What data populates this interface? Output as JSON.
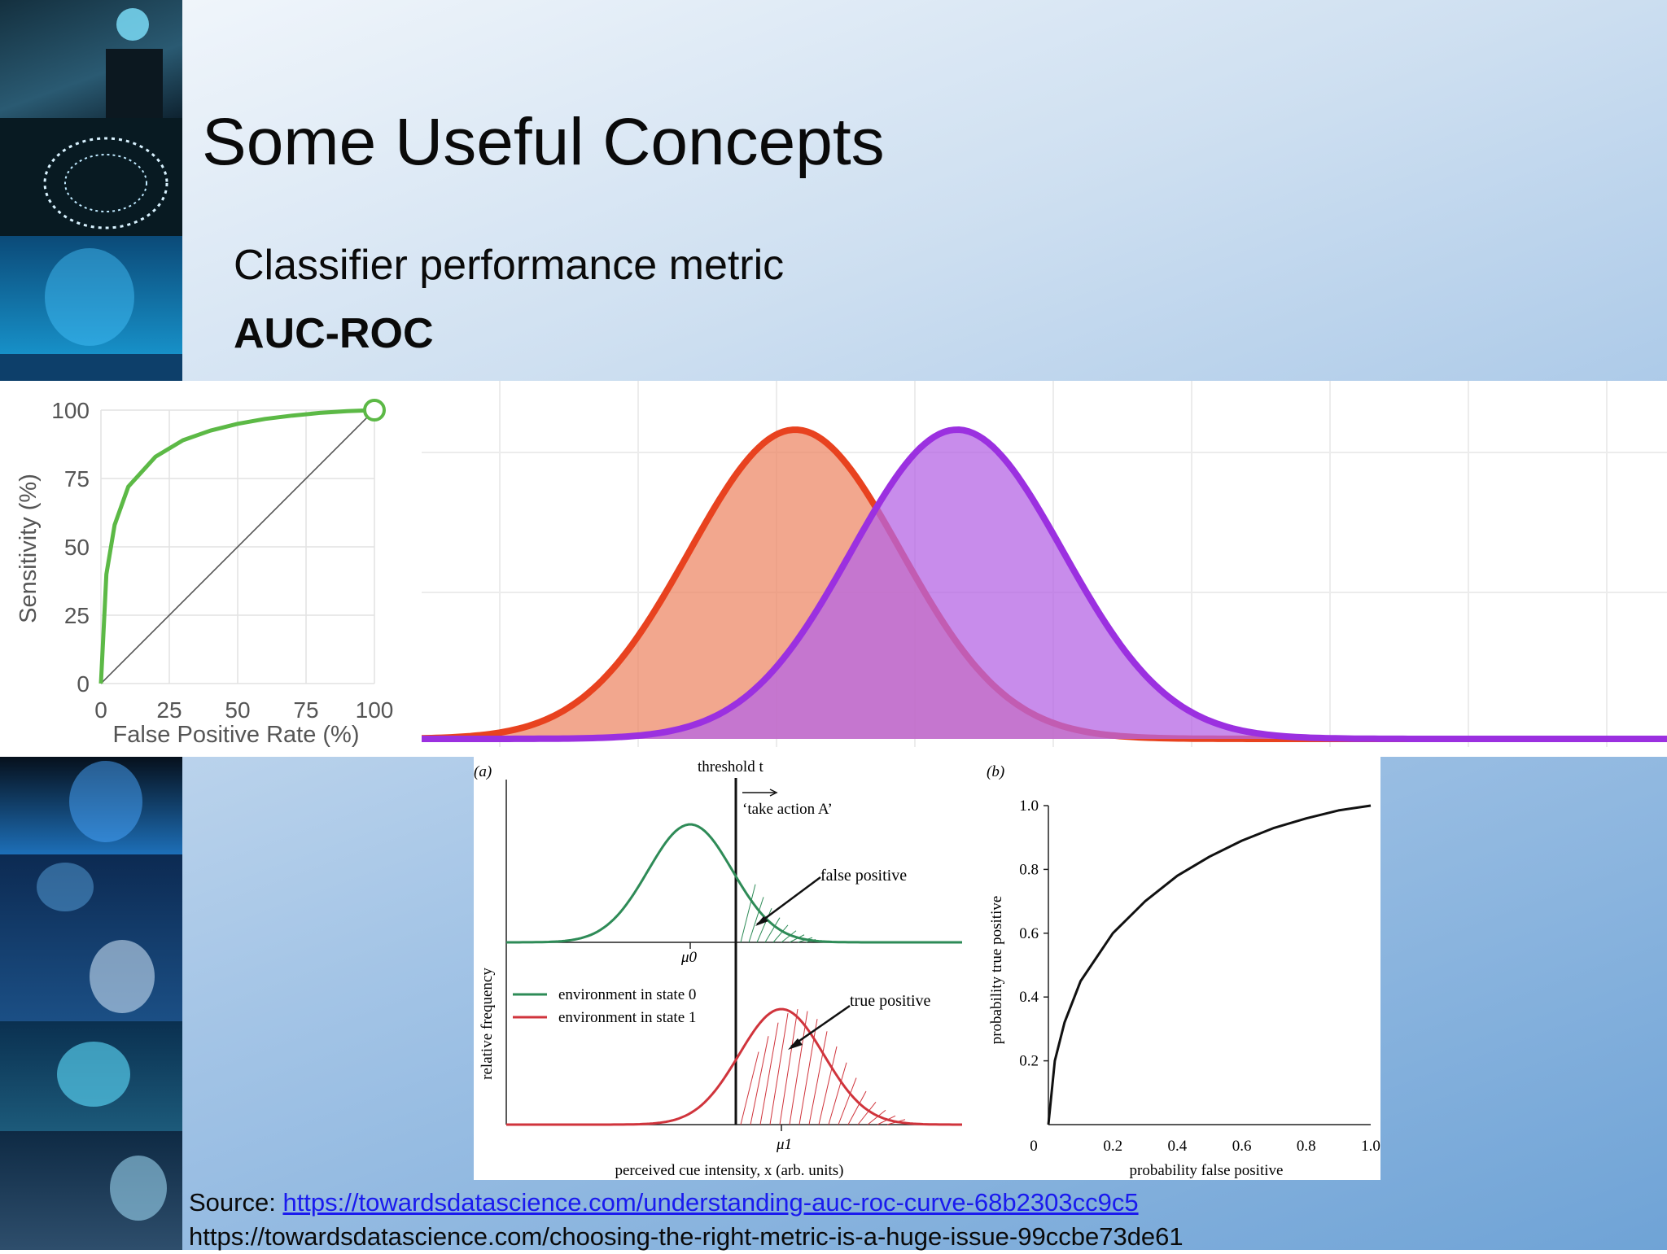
{
  "slide": {
    "title": "Some Useful Concepts",
    "subtitle": "Classifier performance metric",
    "heading": "AUC-ROC"
  },
  "side_strip": {
    "images": [
      "head-with-glowing-brain-icon",
      "circuit-brain-icon",
      "digital-face-icon",
      "neural-pattern-icon",
      "digital-head-icon",
      "binary-head-icon",
      "brain-circuit-icon",
      "robot-head-icon"
    ]
  },
  "roc_chart": {
    "ylabel": "Sensitivity (%)",
    "xlabel": "False Positive Rate (%)",
    "yticks": [
      "100",
      "75",
      "50",
      "25",
      "0"
    ],
    "xticks": [
      "0",
      "25",
      "50",
      "75",
      "100"
    ],
    "curve_color": "#5cb946"
  },
  "distribution_chart": {
    "negative_color": "#e8421f",
    "positive_color": "#9b30e0"
  },
  "sdt_figure": {
    "panel_a": {
      "label": "(a)",
      "threshold_label": "threshold t",
      "action_label": "‘take action A’",
      "false_positive_label": "false positive",
      "true_positive_label": "true positive",
      "mu0": "μ0",
      "mu1": "μ1",
      "ylabel": "relative frequency",
      "xlabel": "perceived cue intensity, x (arb. units)",
      "legend": [
        "environment in state 0",
        "environment in state 1"
      ],
      "state0_color": "#2e8b57",
      "state1_color": "#d0343c"
    },
    "panel_b": {
      "label": "(b)",
      "ylabel": "probability true positive",
      "xlabel": "probability false positive",
      "xticks": [
        "0",
        "0.2",
        "0.4",
        "0.6",
        "0.8",
        "1.0"
      ],
      "yticks": [
        "1.0",
        "0.8",
        "0.6",
        "0.4",
        "0.2"
      ]
    }
  },
  "chart_data": [
    {
      "type": "line",
      "ylabel": "Sensitivity (%)",
      "xlabel": "False Positive Rate (%)",
      "xlim": [
        0,
        100
      ],
      "ylim": [
        0,
        100
      ],
      "series": [
        {
          "x": [
            0,
            2,
            5,
            10,
            20,
            30,
            40,
            50,
            60,
            70,
            80,
            90,
            100
          ],
          "y": [
            0,
            40,
            58,
            72,
            83,
            89,
            92.5,
            95,
            96.8,
            98,
            99,
            99.6,
            100
          ]
        },
        {
          "x": [
            0,
            100
          ],
          "y": [
            0,
            100
          ]
        }
      ]
    },
    {
      "type": "area",
      "series": [
        {
          "mean": 0.3,
          "sd": 0.085
        },
        {
          "mean": 0.43,
          "sd": 0.085
        }
      ]
    },
    {
      "type": "line",
      "ylabel": "probability true positive",
      "xlabel": "probability false positive",
      "xlim": [
        0,
        1
      ],
      "ylim": [
        0,
        1
      ],
      "series": [
        {
          "x": [
            0,
            0.02,
            0.05,
            0.1,
            0.2,
            0.3,
            0.4,
            0.5,
            0.6,
            0.7,
            0.8,
            0.9,
            1.0
          ],
          "y": [
            0,
            0.2,
            0.32,
            0.45,
            0.6,
            0.7,
            0.78,
            0.84,
            0.89,
            0.93,
            0.96,
            0.985,
            1.0
          ]
        }
      ]
    }
  ],
  "source": {
    "prefix": "Source: ",
    "link1": "https://towardsdatascience.com/understanding-auc-roc-curve-68b2303cc9c5",
    "link2": "https://towardsdatascience.com/choosing-the-right-metric-is-a-huge-issue-99ccbe73de61"
  }
}
